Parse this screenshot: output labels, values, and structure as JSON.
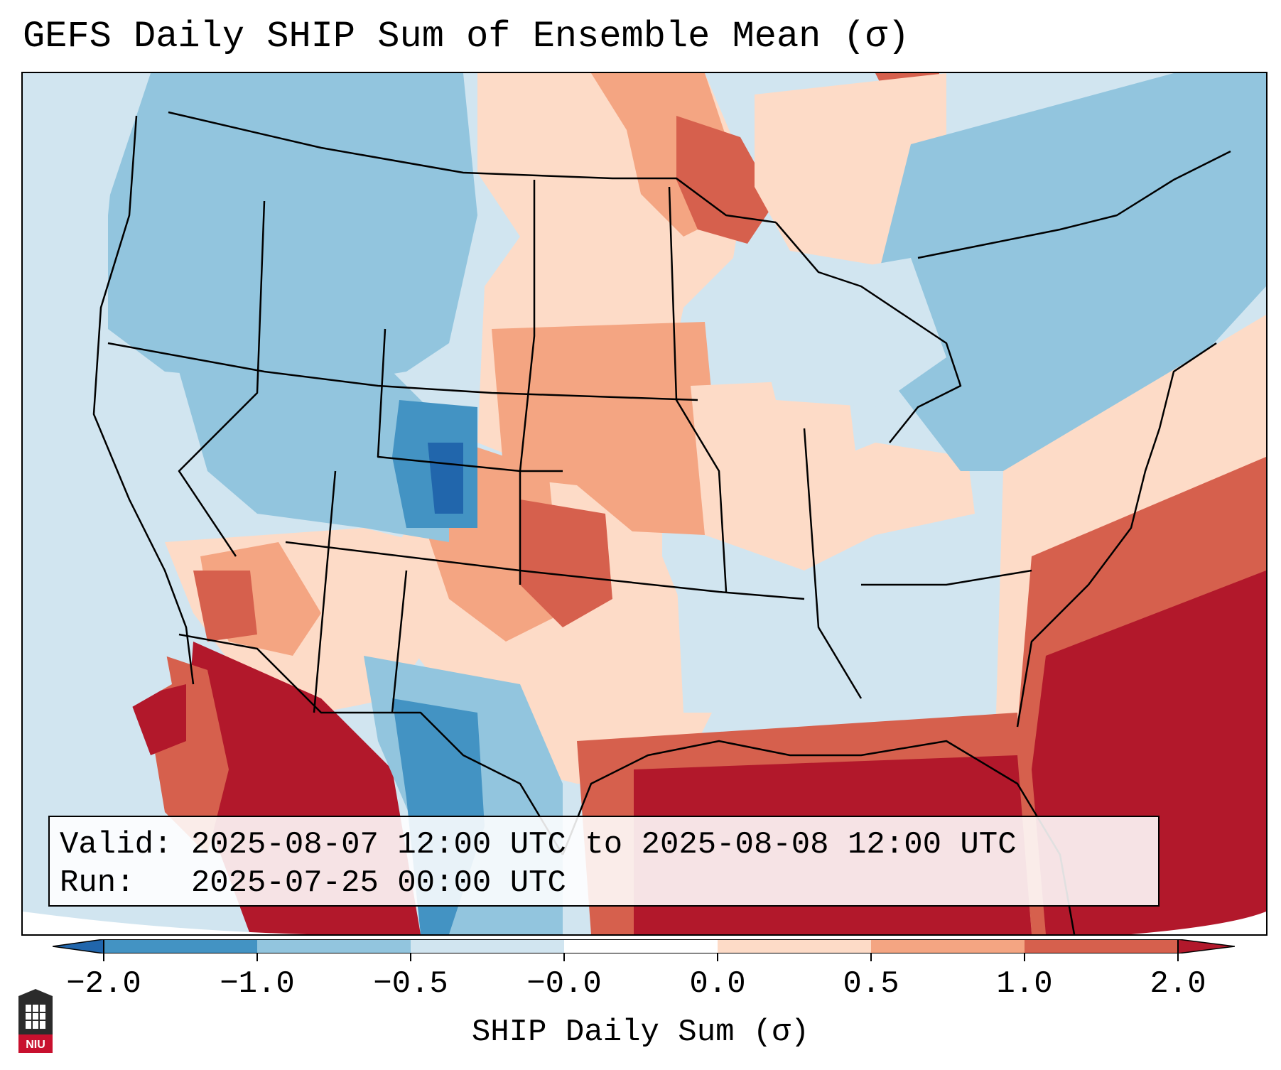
{
  "title": "GEFS Daily SHIP Sum of Ensemble Mean (σ)",
  "info": {
    "valid_line": "Valid: 2025-08-07 12:00 UTC to 2025-08-08 12:00 UTC",
    "run_line": "Run:   2025-07-25 00:00 UTC"
  },
  "colorbar": {
    "label": "SHIP Daily Sum (σ)",
    "ticks": [
      "−2.0",
      "−1.0",
      "−0.5",
      "−0.0",
      "0.0",
      "0.5",
      "1.0",
      "2.0"
    ],
    "colors": [
      "#2166ac",
      "#4393c3",
      "#92c5de",
      "#d1e5f0",
      "#ffffff",
      "#fddbc7",
      "#f4a582",
      "#d6604d",
      "#b2182b"
    ],
    "extend": "both"
  },
  "map": {
    "projection": "Lambert conformal, CONUS domain",
    "regions": [
      {
        "name": "northern-rockies-pacific-nw",
        "category": "-1.0 to -0.5"
      },
      {
        "name": "colorado-utah-core",
        "category": "-2.0 to -1.0"
      },
      {
        "name": "northern-plains",
        "category": "0.5 to 1.0"
      },
      {
        "name": "southwest-desert",
        "category": "1.0 to 2.0"
      },
      {
        "name": "gulf-of-mexico",
        "category": "above 2.0"
      },
      {
        "name": "western-atlantic",
        "category": "above 2.0"
      },
      {
        "name": "southeast",
        "category": "-0.5 to 0.0"
      },
      {
        "name": "northeast-great-lakes",
        "category": "-1.0 to -0.5"
      }
    ]
  },
  "logo": {
    "text": "NIU"
  }
}
